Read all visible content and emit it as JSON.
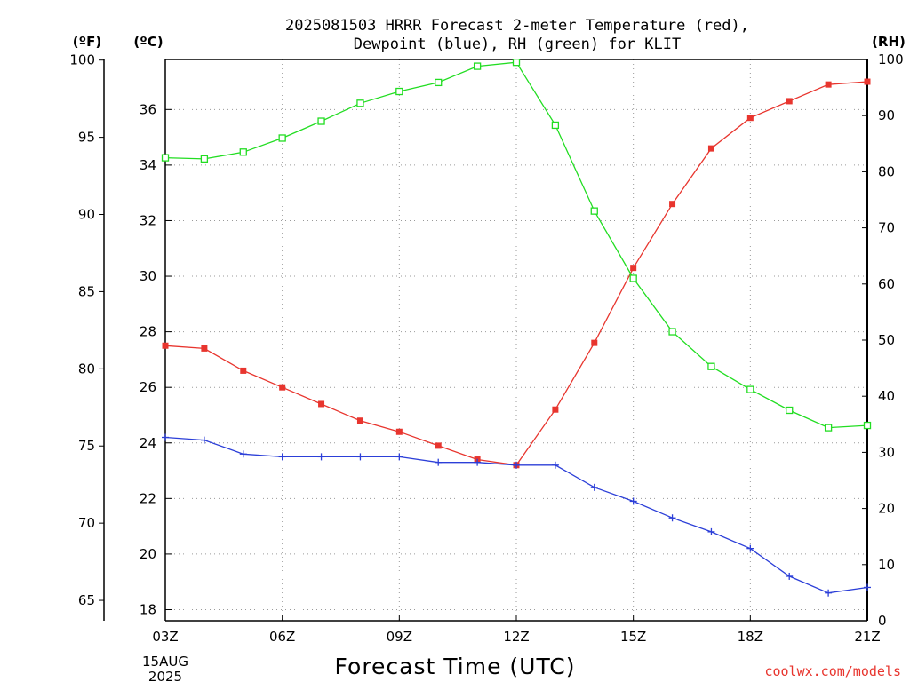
{
  "chart_data": {
    "type": "line",
    "title_line1": "2025081503 HRRR Forecast 2-meter Temperature (red),",
    "title_line2": "Dewpoint (blue), RH (green) for KLIT",
    "xlabel": "Forecast Time (UTC)",
    "credit": "coolwx.com/models",
    "date_line1": "15AUG",
    "date_line2": "2025",
    "units": {
      "fahrenheit": "(ºF)",
      "celsius": "(ºC)",
      "rh": "(RH)"
    },
    "x": [
      3,
      4,
      5,
      6,
      7,
      8,
      9,
      10,
      11,
      12,
      13,
      14,
      15,
      16,
      17,
      18,
      19,
      20,
      21
    ],
    "x_ticks": [
      {
        "hour": 3,
        "label": "03Z"
      },
      {
        "hour": 6,
        "label": "06Z"
      },
      {
        "hour": 9,
        "label": "09Z"
      },
      {
        "hour": 12,
        "label": "12Z"
      },
      {
        "hour": 15,
        "label": "15Z"
      },
      {
        "hour": 18,
        "label": "18Z"
      },
      {
        "hour": 21,
        "label": "21Z"
      }
    ],
    "y_celsius_ticks": [
      "18",
      "20",
      "22",
      "24",
      "26",
      "28",
      "30",
      "32",
      "34",
      "36"
    ],
    "y_fahrenheit_ticks": [
      "65",
      "70",
      "75",
      "80",
      "85",
      "90",
      "95",
      "100"
    ],
    "y_rh_ticks": [
      "0",
      "10",
      "20",
      "30",
      "40",
      "50",
      "60",
      "70",
      "80",
      "90",
      "100"
    ],
    "ylim_celsius": [
      17.6,
      37.8
    ],
    "ylim_rh": [
      0,
      100
    ],
    "grid": true,
    "series": [
      {
        "name": "Temperature",
        "axis": "celsius",
        "color": "#e8352e",
        "marker": "filled-square",
        "values": [
          27.5,
          27.4,
          26.6,
          26.0,
          25.4,
          24.8,
          24.4,
          23.9,
          23.4,
          23.2,
          25.2,
          27.6,
          30.3,
          32.6,
          34.6,
          35.7,
          36.3,
          36.9,
          37.0
        ]
      },
      {
        "name": "Dewpoint",
        "axis": "celsius",
        "color": "#2c3fd8",
        "marker": "plus",
        "values": [
          24.2,
          24.1,
          23.6,
          23.5,
          23.5,
          23.5,
          23.5,
          23.3,
          23.3,
          23.2,
          23.2,
          22.4,
          21.9,
          21.3,
          20.8,
          20.2,
          19.2,
          18.6,
          18.8
        ]
      },
      {
        "name": "RH",
        "axis": "rh",
        "color": "#22dd22",
        "marker": "open-square",
        "values": [
          82.5,
          82.3,
          83.5,
          86,
          89,
          92.2,
          94.3,
          95.9,
          98.8,
          99.5,
          88.3,
          73,
          61,
          51.5,
          45.3,
          41.2,
          37.5,
          34.4,
          34.8
        ]
      }
    ]
  }
}
